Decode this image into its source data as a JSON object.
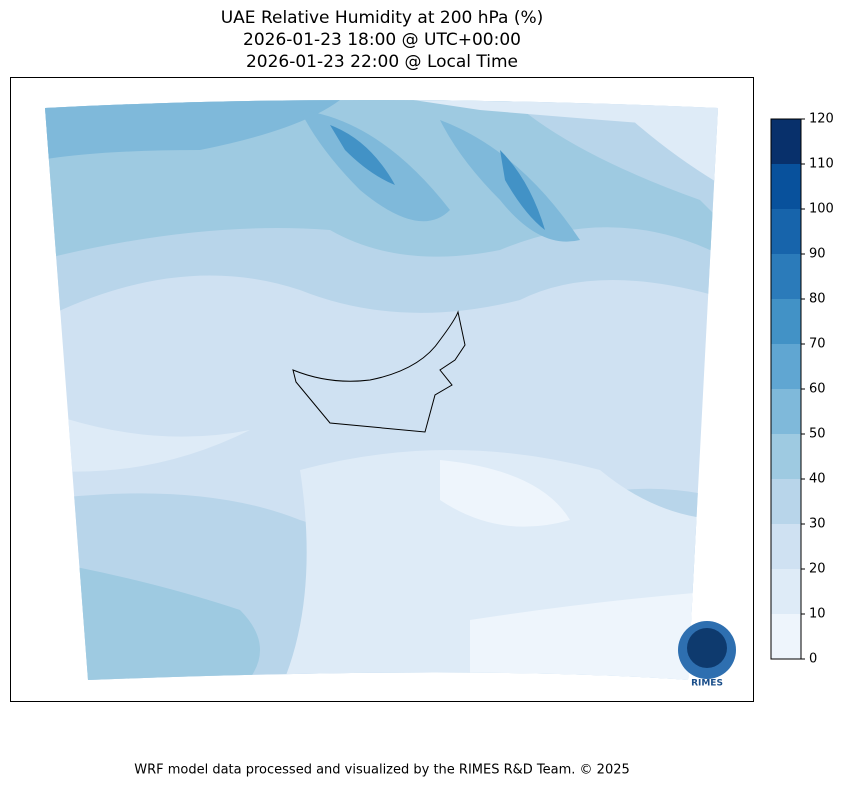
{
  "title": [
    "UAE Relative Humidity at 200 hPa (%)",
    "2026-01-23 18:00 @ UTC+00:00",
    "2026-01-23 22:00 @ Local Time"
  ],
  "colorbar": {
    "ticks": [
      0,
      10,
      20,
      30,
      40,
      50,
      60,
      70,
      80,
      90,
      100,
      110,
      120
    ],
    "colors": [
      "#eef5fc",
      "#deebf7",
      "#cfe1f2",
      "#b8d5ea",
      "#9ecae1",
      "#7fb9da",
      "#60a6d2",
      "#4292c6",
      "#2b7bba",
      "#1764ab",
      "#08519c",
      "#08306b"
    ]
  },
  "logo": "RIMES",
  "footer": "WRF model data processed and visualized by the RIMES R&D Team. © 2025"
}
